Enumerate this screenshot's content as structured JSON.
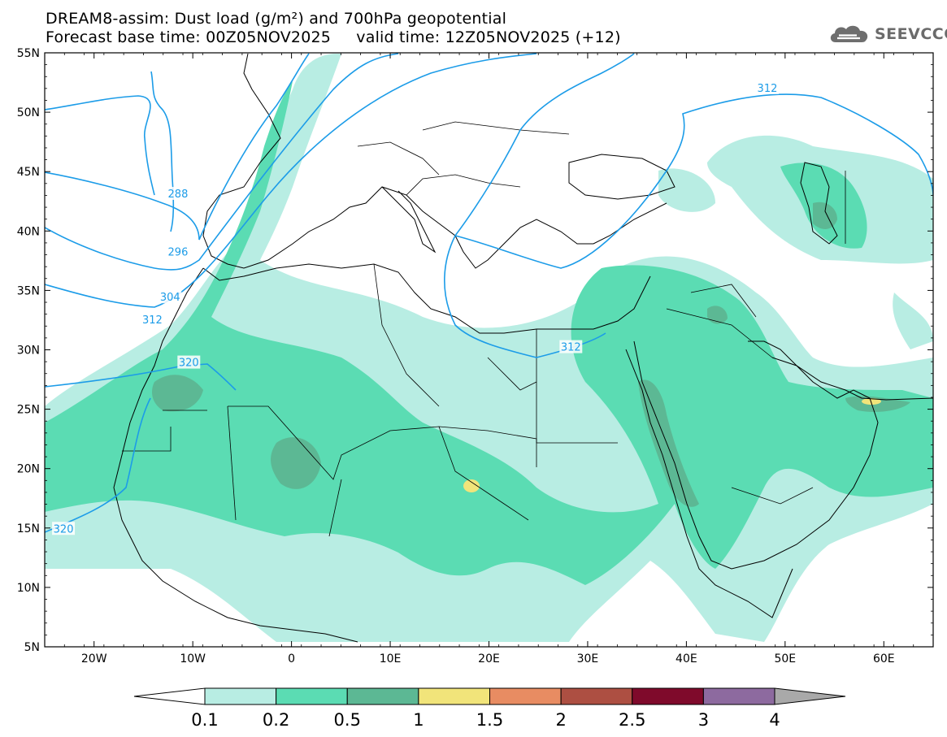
{
  "header": {
    "line1": "DREAM8-assim: Dust load (g/m²) and 700hPa geopotential",
    "line2": "Forecast base time: 00Z05NOV2025     valid time: 12Z05NOV2025 (+12)"
  },
  "logo": {
    "text": "SEEVCCC",
    "icon": "cloud-logo-icon"
  },
  "map": {
    "lon_range": [
      -25,
      65
    ],
    "lat_range": [
      5,
      55
    ],
    "lat_labels": [
      "55N",
      "50N",
      "45N",
      "40N",
      "35N",
      "30N",
      "25N",
      "20N",
      "15N",
      "10N",
      "5N"
    ],
    "lon_labels": [
      "20W",
      "10W",
      "0",
      "10E",
      "20E",
      "30E",
      "40E",
      "50E",
      "60E"
    ],
    "contour_labels": [
      {
        "text": "288",
        "lon": -11.5,
        "lat": 43.1
      },
      {
        "text": "296",
        "lon": -11.5,
        "lat": 38.2
      },
      {
        "text": "304",
        "lon": -12.3,
        "lat": 34.4
      },
      {
        "text": "312",
        "lon": -14.1,
        "lat": 32.5
      },
      {
        "text": "320",
        "lon": -10.4,
        "lat": 28.9
      },
      {
        "text": "320",
        "lon": -23.1,
        "lat": 14.9
      },
      {
        "text": "312",
        "lon": 28.3,
        "lat": 30.2
      },
      {
        "text": "312",
        "lon": 48.2,
        "lat": 52.0
      }
    ]
  },
  "legend": {
    "levels": [
      "0.1",
      "0.2",
      "0.5",
      "1",
      "1.5",
      "2",
      "2.5",
      "3",
      "4"
    ],
    "colors": [
      "#b8ede3",
      "#5bdcb3",
      "#5cb894",
      "#f1e47a",
      "#e88c62",
      "#ad4f42",
      "#7f0a2b",
      "#8d6a9f",
      "#a9a9a9"
    ],
    "low_end_color": "#ffffff"
  },
  "colors": {
    "contour": "#1c9ce8",
    "coast": "#000000",
    "dust_light": "#b8ede3",
    "dust_medium": "#5bdcb3",
    "dust_dark": "#5cb894",
    "dust_peak": "#f1e47a"
  }
}
